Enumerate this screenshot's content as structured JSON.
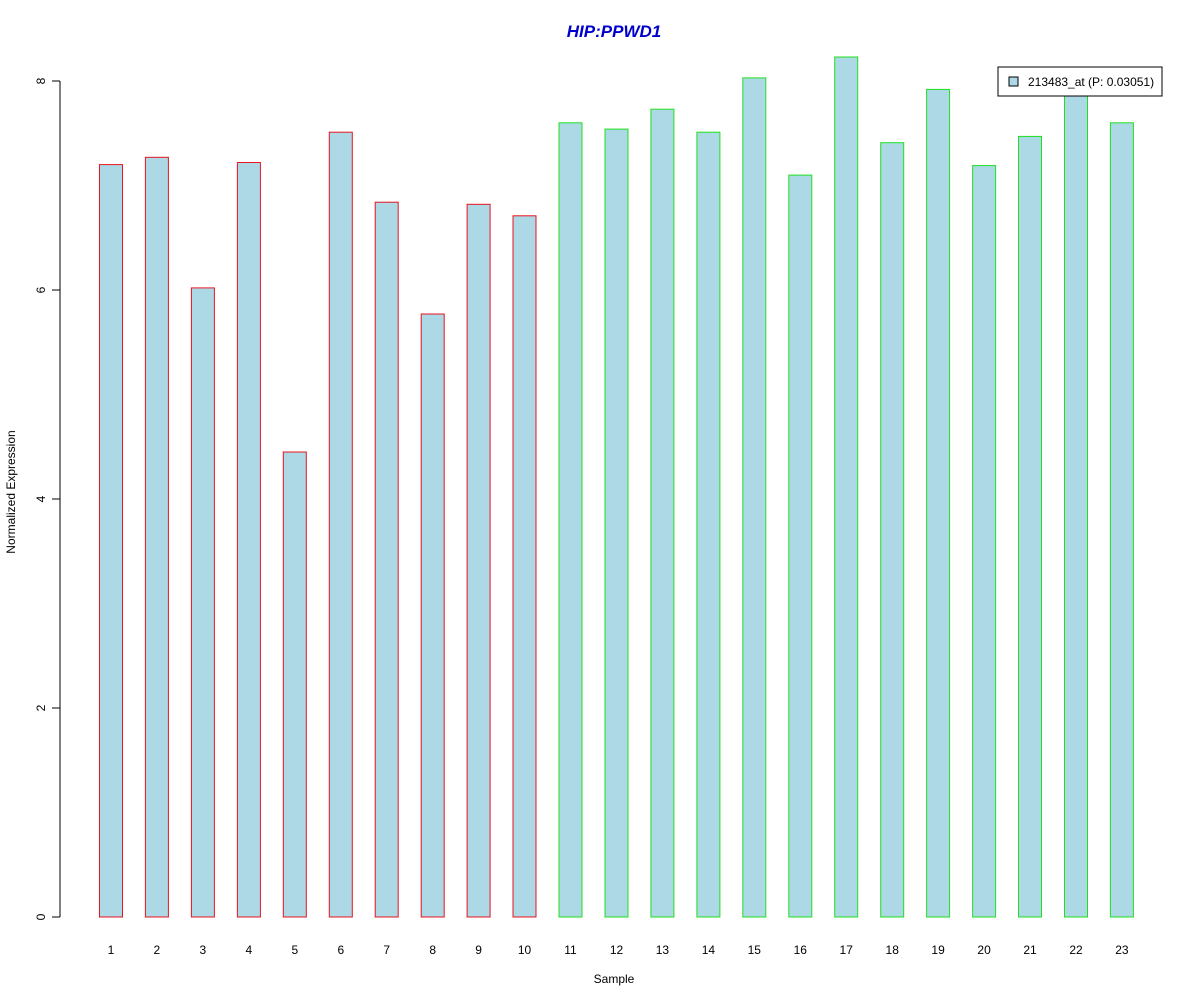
{
  "chart_data": {
    "type": "bar",
    "title": "HIP:PPWD1",
    "xlabel": "Sample",
    "ylabel": "Normalized Expression",
    "categories": [
      "1",
      "2",
      "3",
      "4",
      "5",
      "6",
      "7",
      "8",
      "9",
      "10",
      "11",
      "12",
      "13",
      "14",
      "15",
      "16",
      "17",
      "18",
      "19",
      "20",
      "21",
      "22",
      "23"
    ],
    "series": [
      {
        "name": "213483_at (P: 0.03051)",
        "values": [
          7.2,
          7.27,
          6.02,
          7.22,
          4.45,
          7.51,
          6.84,
          5.77,
          6.82,
          6.71,
          7.6,
          7.54,
          7.73,
          7.51,
          8.03,
          7.1,
          8.23,
          7.41,
          7.92,
          7.19,
          7.47,
          7.89,
          7.6
        ]
      }
    ],
    "groups": [
      {
        "samples": [
          "1",
          "2",
          "3",
          "4",
          "5",
          "6",
          "7",
          "8",
          "9",
          "10"
        ],
        "outline_color": "#e8141e"
      },
      {
        "samples": [
          "11",
          "12",
          "13",
          "14",
          "15",
          "16",
          "17",
          "18",
          "19",
          "20",
          "21",
          "22",
          "23"
        ],
        "outline_color": "#1fe01f"
      }
    ],
    "fill_color": "#add8e6",
    "title_color": "#0000cc",
    "ylim": [
      0,
      8
    ],
    "yticks": [
      0,
      2,
      4,
      6,
      8
    ],
    "grid": false,
    "legend_position": "top-right"
  }
}
